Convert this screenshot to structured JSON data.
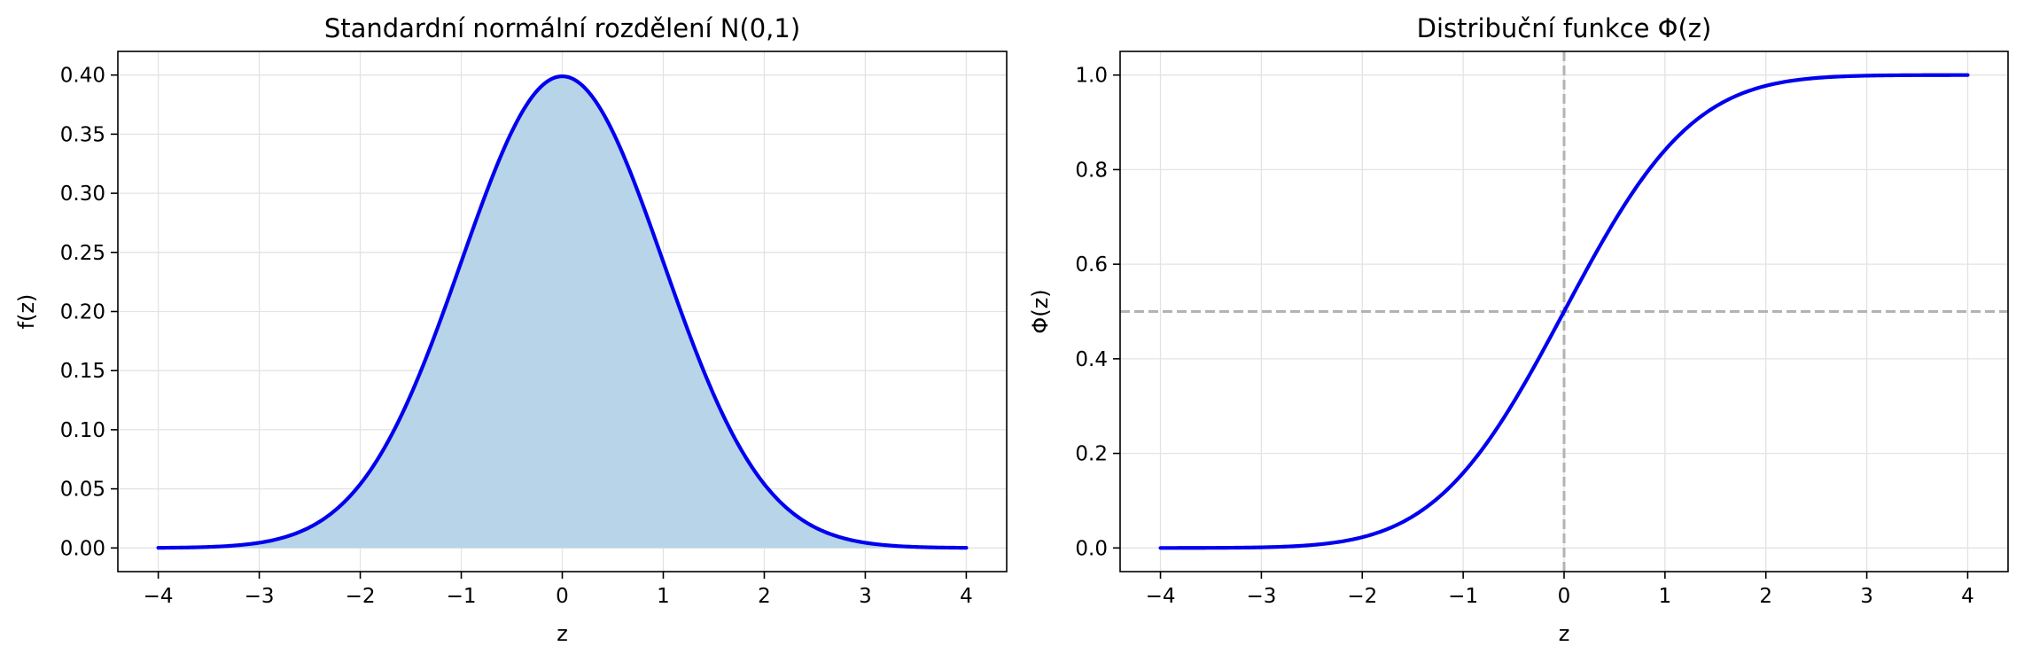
{
  "chart_data": [
    {
      "type": "area",
      "title": "Standardní normální rozdělení N(0,1)",
      "xlabel": "z",
      "ylabel": "f(z)",
      "xlim": [
        -4.4,
        4.4
      ],
      "ylim": [
        -0.02,
        0.42
      ],
      "xticks": [
        -4,
        -3,
        -2,
        -1,
        0,
        1,
        2,
        3,
        4
      ],
      "xtick_labels": [
        "−4",
        "−3",
        "−2",
        "−1",
        "0",
        "1",
        "2",
        "3",
        "4"
      ],
      "yticks": [
        0.0,
        0.05,
        0.1,
        0.15,
        0.2,
        0.25,
        0.3,
        0.35,
        0.4
      ],
      "ytick_labels": [
        "0.00",
        "0.05",
        "0.10",
        "0.15",
        "0.20",
        "0.25",
        "0.30",
        "0.35",
        "0.40"
      ],
      "grid": true,
      "fill_under_curve": true,
      "fill_color": "#b8d4e8",
      "line_color": "#0000ee",
      "series": [
        {
          "x": [
            -4,
            -3.5,
            -3,
            -2.5,
            -2,
            -1.5,
            -1,
            -0.5,
            0,
            0.5,
            1,
            1.5,
            2,
            2.5,
            3,
            3.5,
            4
          ],
          "values": [
            0.0001,
            0.0009,
            0.0044,
            0.0175,
            0.054,
            0.1295,
            0.242,
            0.3521,
            0.3989,
            0.3521,
            0.242,
            0.1295,
            0.054,
            0.0175,
            0.0044,
            0.0009,
            0.0001
          ]
        }
      ]
    },
    {
      "type": "line",
      "title": "Distribuční funkce Φ(z)",
      "xlabel": "z",
      "ylabel": "Φ(z)",
      "xlim": [
        -4.4,
        4.4
      ],
      "ylim": [
        -0.05,
        1.05
      ],
      "xticks": [
        -4,
        -3,
        -2,
        -1,
        0,
        1,
        2,
        3,
        4
      ],
      "xtick_labels": [
        "−4",
        "−3",
        "−2",
        "−1",
        "0",
        "1",
        "2",
        "3",
        "4"
      ],
      "yticks": [
        0.0,
        0.2,
        0.4,
        0.6,
        0.8,
        1.0
      ],
      "ytick_labels": [
        "0.0",
        "0.2",
        "0.4",
        "0.6",
        "0.8",
        "1.0"
      ],
      "grid": true,
      "line_color": "#0000ee",
      "reference_lines": [
        {
          "orientation": "horizontal",
          "value": 0.5,
          "style": "dashed",
          "color": "#b3b3b3"
        },
        {
          "orientation": "vertical",
          "value": 0,
          "style": "dashed",
          "color": "#b3b3b3"
        }
      ],
      "series": [
        {
          "x": [
            -4,
            -3.5,
            -3,
            -2.5,
            -2,
            -1.5,
            -1,
            -0.5,
            0,
            0.5,
            1,
            1.5,
            2,
            2.5,
            3,
            3.5,
            4
          ],
          "values": [
            0.0,
            0.0002,
            0.0013,
            0.0062,
            0.0228,
            0.0668,
            0.1587,
            0.3085,
            0.5,
            0.6915,
            0.8413,
            0.9332,
            0.9772,
            0.9938,
            0.9987,
            0.9998,
            1.0
          ]
        }
      ]
    }
  ]
}
